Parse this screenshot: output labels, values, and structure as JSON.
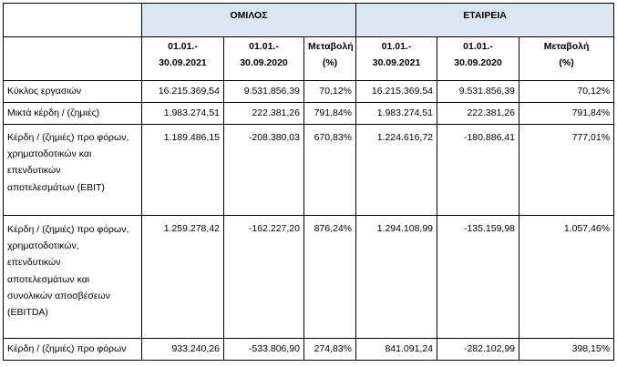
{
  "groups": {
    "omilos": "ΟΜΙΛΟΣ",
    "etaireia": "ΕΤΑΙΡΕΙΑ"
  },
  "column_headers": {
    "p2021_line1": "01.01.-",
    "p2021_line2": "30.09.2021",
    "p2020_line1": "01.01.-",
    "p2020_line2": "30.09.2020",
    "change_line1": "Μεταβολή",
    "change_line2": "(%)"
  },
  "rows": [
    {
      "label": [
        "Κύκλος εργασιών"
      ],
      "g2021": "16.215.369,54",
      "g2020": "9.531.856,39",
      "gchg": "70,12%",
      "c2021": "16.215.369,54",
      "c2020": "9.531.856,39",
      "cchg": "70,12%"
    },
    {
      "label": [
        "Μικτά κέρδη / (ζημιές)"
      ],
      "g2021": "1.983.274,51",
      "g2020": "222.381,26",
      "gchg": "791,84%",
      "c2021": "1.983.274,51",
      "c2020": "222.381,26",
      "cchg": "791,84%"
    },
    {
      "label": [
        "Κέρδη / (ζημιές) προ φόρων,",
        "χρηματοδοτικών και",
        "επενδυτικών",
        "αποτελεσμάτων (EBIT)"
      ],
      "g2021": "1.189.486,15",
      "g2020": "-208.380,03",
      "gchg": "670,83%",
      "c2021": "1.224.616,72",
      "c2020": "-180.886,41",
      "cchg": "777,01%"
    },
    {
      "label": [
        "Κέρδη / (ζημιές) προ φόρων,",
        "χρηματοδοτικών,",
        "επενδυτικών",
        "αποτελεσμάτων και",
        "συνολικών αποσβέσεων",
        "(EBITDA)"
      ],
      "g2021": "1.259.278,42",
      "g2020": "-162.227,20",
      "gchg": "876,24%",
      "c2021": "1.294.108,99",
      "c2020": "-135.159,98",
      "cchg": "1.057,46%"
    },
    {
      "label": [
        "Κέρδη / (ζημιές) προ φόρων"
      ],
      "g2021": "933.240,26",
      "g2020": "-533.806,90",
      "gchg": "274,83%",
      "c2021": "841.091,24",
      "c2020": "-282.102,99",
      "cchg": "398,15%"
    }
  ]
}
